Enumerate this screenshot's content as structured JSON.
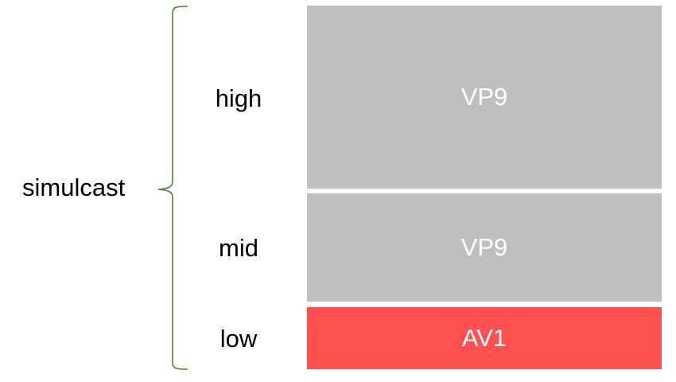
{
  "group_label": "simulcast",
  "brace_color": "#538135",
  "layers": [
    {
      "label": "high",
      "codec": "VP9",
      "color": "#bfbfbf"
    },
    {
      "label": "mid",
      "codec": "VP9",
      "color": "#bfbfbf"
    },
    {
      "label": "low",
      "codec": "AV1",
      "color": "#ff5050"
    }
  ]
}
